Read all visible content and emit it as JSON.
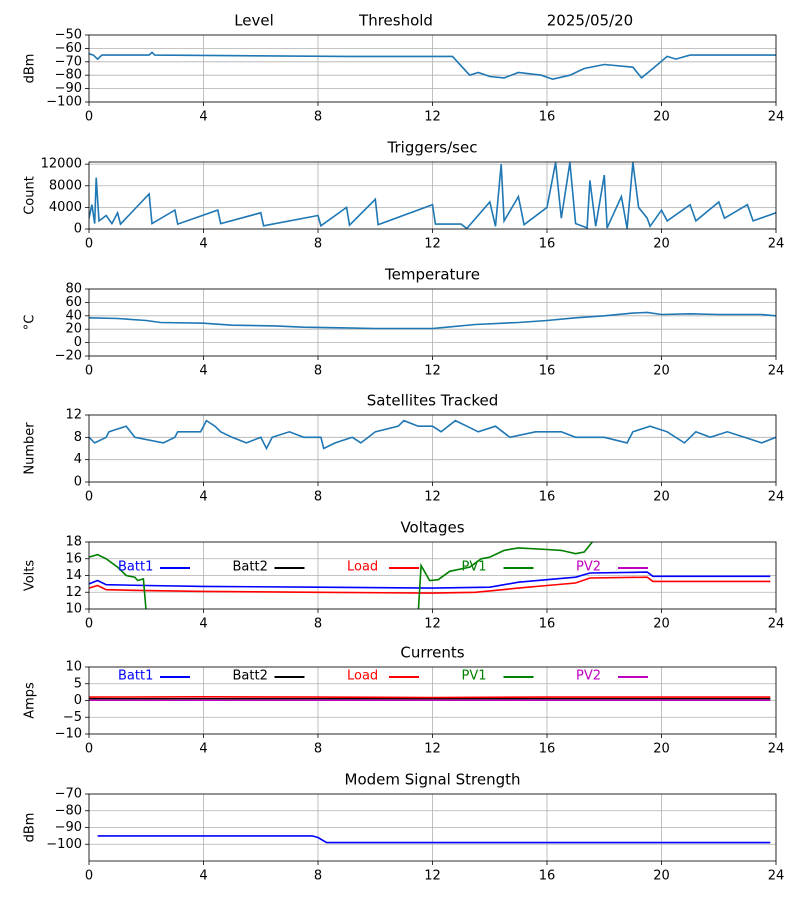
{
  "chart_data": [
    {
      "type": "line",
      "title": "Level",
      "annotations": [
        "Threshold",
        "2025/05/20"
      ],
      "ylabel": "dBm",
      "xlim": [
        0,
        24
      ],
      "xticks": [
        0,
        4,
        8,
        12,
        16,
        20,
        24
      ],
      "ylim": [
        -100,
        -50
      ],
      "yticks": [
        {
          "value": -100,
          "label": "−100"
        },
        {
          "value": -90,
          "label": "−90"
        },
        {
          "value": -80,
          "label": "−80"
        },
        {
          "value": -70,
          "label": "−70"
        },
        {
          "value": -60,
          "label": "−60"
        },
        {
          "value": -50,
          "label": "−50"
        }
      ],
      "grid": true,
      "series": [
        {
          "color": "#1f77b4",
          "x": [
            0,
            0.15,
            0.3,
            0.45,
            2.1,
            2.2,
            2.3,
            9,
            12.7,
            13.3,
            13.6,
            14,
            14.5,
            15,
            15.8,
            16.2,
            16.8,
            17.3,
            18,
            19,
            19.3,
            19.7,
            20.2,
            20.5,
            21,
            24
          ],
          "values": [
            -64,
            -65,
            -68,
            -65,
            -65,
            -63,
            -65,
            -66,
            -66,
            -80,
            -78,
            -81,
            -82,
            -78,
            -80,
            -83,
            -80,
            -75,
            -72,
            -74,
            -82,
            -75,
            -66,
            -68,
            -65,
            -65
          ]
        }
      ]
    },
    {
      "type": "line",
      "title": "Triggers/sec",
      "ylabel": "Count",
      "xlim": [
        0,
        24
      ],
      "xticks": [
        0,
        4,
        8,
        12,
        16,
        20,
        24
      ],
      "ylim": [
        0,
        12400
      ],
      "yticks": [
        0,
        4000,
        8000,
        12000
      ],
      "grid": true,
      "series": [
        {
          "color": "#1f77b4",
          "x": [
            0,
            0.1,
            0.2,
            0.25,
            0.35,
            0.6,
            0.8,
            1.0,
            1.1,
            2.1,
            2.2,
            3,
            3.1,
            4.5,
            4.6,
            6,
            6.1,
            8,
            8.1,
            9,
            9.1,
            10,
            10.1,
            12,
            12.1,
            13.0,
            13.2,
            14,
            14.2,
            14.4,
            14.5,
            15,
            15.2,
            16,
            16.3,
            16.5,
            16.8,
            17,
            17.4,
            17.5,
            17.7,
            18,
            18.1,
            18.6,
            18.8,
            19,
            19.2,
            19.5,
            19.6,
            20,
            20.2,
            21,
            21.2,
            22,
            22.2,
            23,
            23.2,
            24
          ],
          "values": [
            2000,
            4500,
            1000,
            9500,
            1500,
            2500,
            1000,
            3000,
            900,
            6500,
            1000,
            3500,
            900,
            3500,
            1000,
            3000,
            600,
            2500,
            600,
            4000,
            700,
            5500,
            800,
            4500,
            900,
            900,
            100,
            5000,
            500,
            12000,
            1500,
            6000,
            800,
            4000,
            12300,
            2000,
            12300,
            1000,
            200,
            9000,
            500,
            10000,
            200,
            6000,
            100,
            12300,
            4000,
            2000,
            500,
            3500,
            1500,
            4500,
            1500,
            5000,
            2000,
            4500,
            1500,
            3000
          ]
        }
      ]
    },
    {
      "type": "line",
      "title": "Temperature",
      "ylabel": "°C",
      "xlim": [
        0,
        24
      ],
      "xticks": [
        0,
        4,
        8,
        12,
        16,
        20,
        24
      ],
      "ylim": [
        -20,
        80
      ],
      "yticks": [
        {
          "value": -20,
          "label": "−20"
        },
        0,
        20,
        40,
        60,
        80
      ],
      "grid": true,
      "series": [
        {
          "color": "#1f77b4",
          "x": [
            0,
            1,
            2,
            2.5,
            4,
            5,
            6.5,
            7.5,
            9,
            10,
            12,
            12.5,
            13.5,
            15,
            16,
            17,
            18,
            19,
            19.5,
            20,
            21,
            22,
            23.5,
            24
          ],
          "values": [
            37,
            36,
            33,
            30,
            29,
            26,
            25,
            23,
            22,
            21,
            21,
            23,
            27,
            30,
            33,
            37,
            40,
            44,
            45,
            42,
            43,
            42,
            42,
            40
          ]
        }
      ]
    },
    {
      "type": "line",
      "title": "Satellites Tracked",
      "ylabel": "Number",
      "xlim": [
        0,
        24
      ],
      "xticks": [
        0,
        4,
        8,
        12,
        16,
        20,
        24
      ],
      "ylim": [
        0,
        12
      ],
      "yticks": [
        0,
        4,
        8,
        12
      ],
      "grid": true,
      "series": [
        {
          "color": "#1f77b4",
          "x": [
            0,
            0.2,
            0.6,
            0.7,
            1.3,
            1.6,
            2.6,
            3,
            3.1,
            3.9,
            4.1,
            4.4,
            4.6,
            5,
            5.5,
            6,
            6.2,
            6.4,
            7,
            7.5,
            8.1,
            8.2,
            8.6,
            9.2,
            9.5,
            10,
            10.8,
            11,
            11.5,
            12,
            12.3,
            12.8,
            13.2,
            13.6,
            14.2,
            14.7,
            15.6,
            16.5,
            17,
            18,
            18.8,
            19,
            19.6,
            20.2,
            20.8,
            21.2,
            21.7,
            22.3,
            22.9,
            23.5,
            24
          ],
          "values": [
            8,
            7,
            8,
            9,
            10,
            8,
            7,
            8,
            9,
            9,
            11,
            10,
            9,
            8,
            7,
            8,
            6,
            8,
            9,
            8,
            8,
            6,
            7,
            8,
            7,
            9,
            10,
            11,
            10,
            10,
            9,
            11,
            10,
            9,
            10,
            8,
            9,
            9,
            8,
            8,
            7,
            9,
            10,
            9,
            7,
            9,
            8,
            9,
            8,
            7,
            8
          ]
        }
      ]
    },
    {
      "type": "line",
      "title": "Voltages",
      "ylabel": "Volts",
      "legend": "top",
      "xlim": [
        0,
        24
      ],
      "xticks": [
        0,
        4,
        8,
        12,
        16,
        20,
        24
      ],
      "ylim": [
        10,
        18
      ],
      "yticks": [
        10,
        12,
        14,
        16,
        18
      ],
      "grid": true,
      "series": [
        {
          "name": "Batt1",
          "color": "#0000ff",
          "x": [
            0,
            0.3,
            0.6,
            2,
            4,
            8,
            12,
            14,
            15,
            16,
            17,
            17.5,
            19.5,
            19.7,
            23.8
          ],
          "values": [
            13,
            13.4,
            12.9,
            12.8,
            12.7,
            12.6,
            12.5,
            12.6,
            13.2,
            13.5,
            13.8,
            14.3,
            14.4,
            13.9,
            13.9
          ]
        },
        {
          "name": "Batt2",
          "color": "#000000",
          "x": [],
          "values": []
        },
        {
          "name": "Load",
          "color": "#ff0000",
          "x": [
            0,
            0.3,
            0.6,
            2,
            4,
            8,
            12,
            13.5,
            15,
            16,
            17,
            17.5,
            19.5,
            19.7,
            23.8
          ],
          "values": [
            12.5,
            12.8,
            12.3,
            12.2,
            12.1,
            12.0,
            11.9,
            12.0,
            12.5,
            12.8,
            13.1,
            13.7,
            13.8,
            13.3,
            13.3
          ]
        },
        {
          "name": "PV1",
          "color": "#008000",
          "x": [
            0,
            0.3,
            0.6,
            1,
            1.3,
            1.6,
            1.7,
            1.9,
            2,
            6,
            11.5,
            11.6,
            11.9,
            12.2,
            12.6,
            13.3,
            13.7,
            14,
            14.5,
            15,
            16,
            16.5,
            17,
            17.3,
            17.7
          ],
          "values": [
            16.2,
            16.5,
            16,
            15,
            14,
            13.8,
            13.4,
            13.6,
            9.5,
            null,
            9.5,
            15.2,
            13.4,
            13.5,
            14.5,
            15,
            16,
            16.2,
            17,
            17.3,
            17.1,
            17,
            16.6,
            16.8,
            18.5
          ]
        },
        {
          "name": "PV2",
          "color": "#bf00bf",
          "x": [],
          "values": []
        }
      ]
    },
    {
      "type": "line",
      "title": "Currents",
      "ylabel": "Amps",
      "legend": "top",
      "xlim": [
        0,
        24
      ],
      "xticks": [
        0,
        4,
        8,
        12,
        16,
        20,
        24
      ],
      "ylim": [
        -10,
        10
      ],
      "yticks": [
        {
          "value": -10,
          "label": "−10"
        },
        {
          "value": -5,
          "label": "−5"
        },
        0,
        5,
        10
      ],
      "grid": true,
      "series": [
        {
          "name": "Batt1",
          "color": "#0000ff",
          "x": [
            0,
            23.8
          ],
          "values": [
            0.3,
            0.3
          ]
        },
        {
          "name": "Batt2",
          "color": "#000000",
          "x": [
            0,
            23.8
          ],
          "values": [
            0.5,
            0.5
          ]
        },
        {
          "name": "Load",
          "color": "#ff0000",
          "x": [
            0,
            4,
            8,
            12,
            16,
            20,
            23.8
          ],
          "values": [
            1.0,
            1.1,
            1.0,
            0.9,
            1.0,
            1.0,
            1.0
          ]
        },
        {
          "name": "PV1",
          "color": "#008000",
          "x": [
            0,
            23.8
          ],
          "values": [
            0.2,
            0.2
          ]
        },
        {
          "name": "PV2",
          "color": "#bf00bf",
          "x": [
            0,
            23.8
          ],
          "values": [
            0.1,
            0.1
          ]
        }
      ]
    },
    {
      "type": "line",
      "title": "Modem Signal Strength",
      "ylabel": "dBm",
      "xlim": [
        0,
        24
      ],
      "xticks": [
        0,
        4,
        8,
        12,
        16,
        20,
        24
      ],
      "ylim": [
        -110,
        -70
      ],
      "yticks": [
        {
          "value": -100,
          "label": "−100"
        },
        {
          "value": -90,
          "label": "−90"
        },
        {
          "value": -80,
          "label": "−80"
        },
        {
          "value": -70,
          "label": "−70"
        }
      ],
      "grid": true,
      "series": [
        {
          "color": "#0000ff",
          "x": [
            0.3,
            7.8,
            8.0,
            8.3,
            23.8
          ],
          "values": [
            -95,
            -95,
            -96,
            -99,
            -99
          ]
        }
      ]
    }
  ]
}
